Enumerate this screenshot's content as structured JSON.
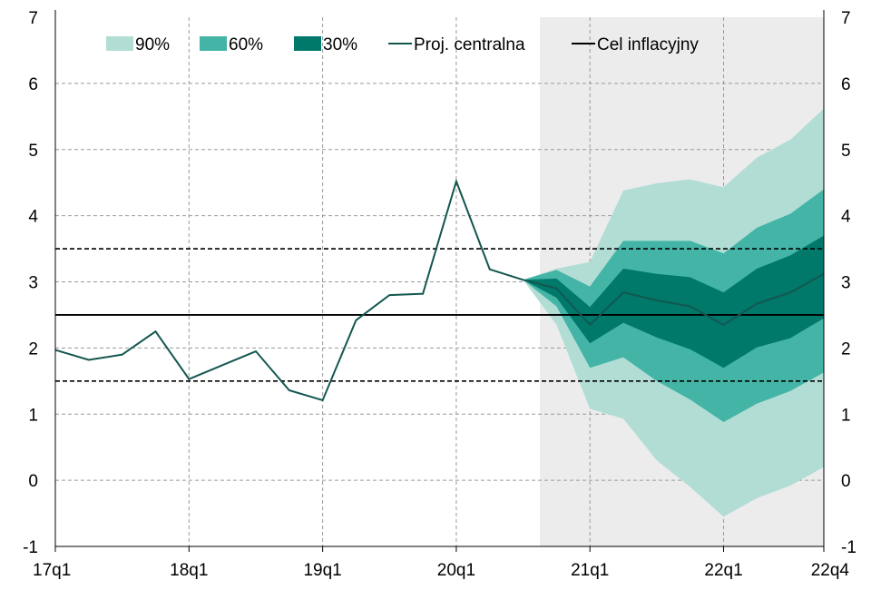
{
  "chart_data": {
    "type": "area",
    "title": "",
    "xlabel": "",
    "ylabel": "",
    "ylim": [
      -1,
      7
    ],
    "y_ticks": [
      "-1",
      "0",
      "1",
      "2",
      "3",
      "4",
      "5",
      "6",
      "7"
    ],
    "x_labels": [
      "17q1",
      "18q1",
      "19q1",
      "20q1",
      "21q1",
      "22q1",
      "22q4"
    ],
    "quarters": [
      "17q1",
      "17q2",
      "17q3",
      "17q4",
      "18q1",
      "18q2",
      "18q3",
      "18q4",
      "19q1",
      "19q2",
      "19q3",
      "19q4",
      "20q1",
      "20q2",
      "20q3",
      "20q4",
      "21q1",
      "21q2",
      "21q3",
      "21q4",
      "22q1",
      "22q2",
      "22q3",
      "22q4"
    ],
    "grid": true,
    "legend_position": "top",
    "projection_shade_start": "20q4",
    "central_projection": [
      1.97,
      1.82,
      1.9,
      2.25,
      1.53,
      1.74,
      1.95,
      1.36,
      1.21,
      2.42,
      2.8,
      2.82,
      4.52,
      3.19,
      3.03,
      2.9,
      2.35,
      2.84,
      2.72,
      2.63,
      2.35,
      2.67,
      2.84,
      3.12
    ],
    "fan_start": "20q3",
    "bands": [
      {
        "name": "90%",
        "color": "#b2ddd5",
        "lower": [
          3.03,
          2.35,
          1.08,
          0.93,
          0.3,
          -0.1,
          -0.55,
          -0.27,
          -0.08,
          0.2
        ],
        "upper": [
          3.03,
          3.2,
          3.3,
          4.38,
          4.49,
          4.55,
          4.43,
          4.88,
          5.15,
          5.62
        ]
      },
      {
        "name": "60%",
        "color": "#44b4a6",
        "lower": [
          3.03,
          2.63,
          1.7,
          1.86,
          1.5,
          1.22,
          0.88,
          1.16,
          1.35,
          1.63
        ],
        "upper": [
          3.03,
          3.18,
          2.93,
          3.62,
          3.62,
          3.62,
          3.43,
          3.82,
          4.03,
          4.4
        ]
      },
      {
        "name": "30%",
        "color": "#00796a",
        "lower": [
          3.03,
          2.76,
          2.07,
          2.38,
          2.16,
          1.98,
          1.7,
          2.01,
          2.15,
          2.45
        ],
        "upper": [
          3.03,
          3.05,
          2.62,
          3.2,
          3.12,
          3.07,
          2.84,
          3.2,
          3.4,
          3.7
        ]
      }
    ],
    "inflation_target": 2.5,
    "tolerance_band": [
      1.5,
      3.5
    ],
    "colors": {
      "central": "#13574f",
      "target": "#000000",
      "shade": "#ececec"
    },
    "legend": [
      {
        "label": "90%",
        "kind": "box",
        "color": "#b2ddd5"
      },
      {
        "label": "60%",
        "kind": "box",
        "color": "#44b4a6"
      },
      {
        "label": "30%",
        "kind": "box",
        "color": "#00796a"
      },
      {
        "label": "Proj. centralna",
        "kind": "line",
        "color": "#13574f"
      },
      {
        "label": "Cel inflacyjny",
        "kind": "line",
        "color": "#000000"
      }
    ]
  }
}
